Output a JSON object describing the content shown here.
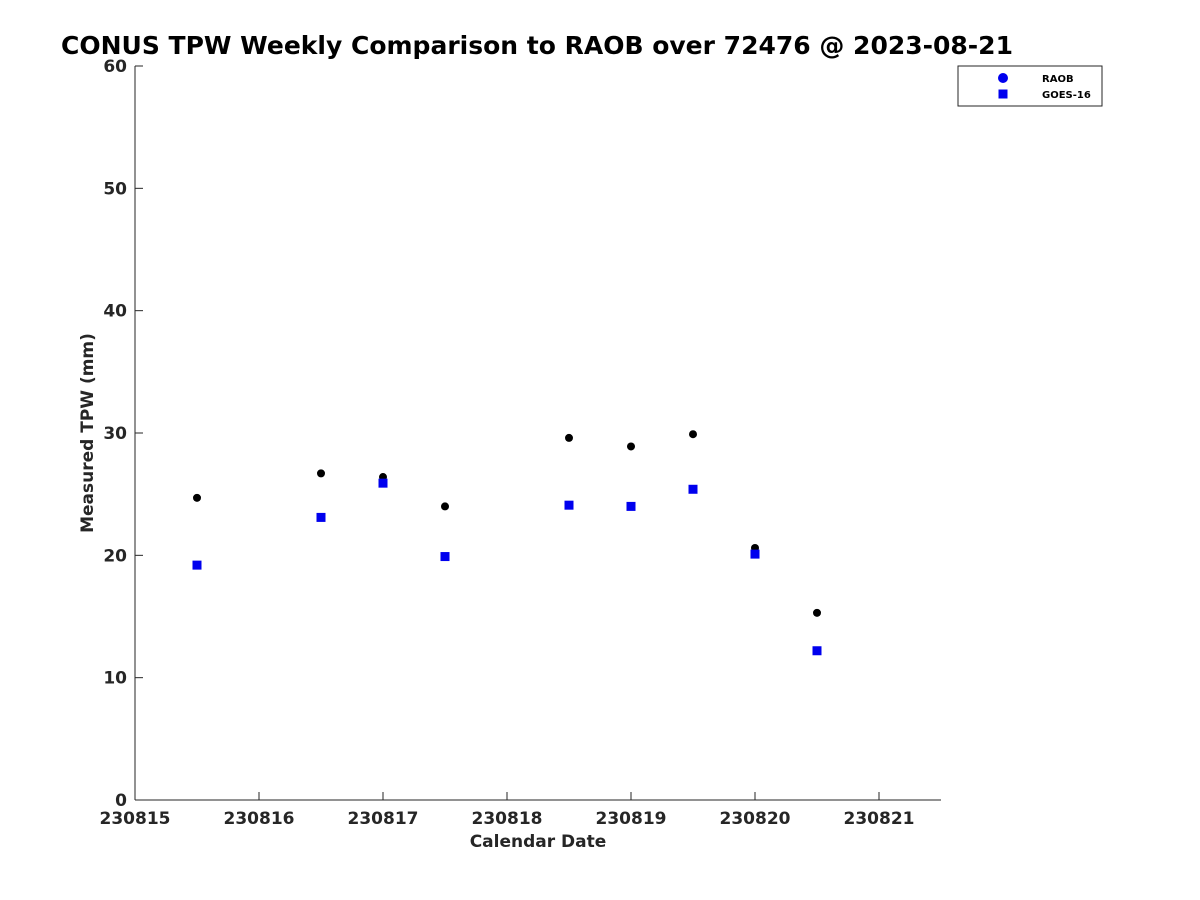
{
  "chart_data": {
    "type": "scatter",
    "title": "CONUS TPW Weekly Comparison to RAOB over 72476 @ 2023-08-21",
    "xlabel": "Calendar Date",
    "ylabel": "Measured TPW (mm)",
    "xlim": [
      230815,
      230821.5
    ],
    "ylim": [
      0,
      60
    ],
    "xticks": [
      230815,
      230816,
      230817,
      230818,
      230819,
      230820,
      230821
    ],
    "xtick_labels": [
      "230815",
      "230816",
      "230817",
      "230818",
      "230819",
      "230820",
      "230821"
    ],
    "yticks": [
      0,
      10,
      20,
      30,
      40,
      50,
      60
    ],
    "ytick_labels": [
      "0",
      "10",
      "20",
      "30",
      "40",
      "50",
      "60"
    ],
    "grid": false,
    "legend_position": "top-right",
    "series": [
      {
        "name": "RAOB",
        "marker": "circle",
        "color": "#000000",
        "legend_color": "#0000ee",
        "x": [
          230815.5,
          230816.5,
          230817.0,
          230817.5,
          230818.5,
          230819.0,
          230819.5,
          230820.0,
          230820.5
        ],
        "y": [
          24.7,
          26.7,
          26.4,
          24.0,
          29.6,
          28.9,
          29.9,
          20.6,
          15.3
        ]
      },
      {
        "name": "GOES-16",
        "marker": "square",
        "color": "#0000ee",
        "legend_color": "#0000ee",
        "x": [
          230815.5,
          230816.5,
          230817.0,
          230817.5,
          230818.5,
          230819.0,
          230819.5,
          230820.0,
          230820.5
        ],
        "y": [
          19.2,
          23.1,
          25.9,
          19.9,
          24.1,
          24.0,
          25.4,
          20.1,
          12.2
        ]
      }
    ]
  }
}
